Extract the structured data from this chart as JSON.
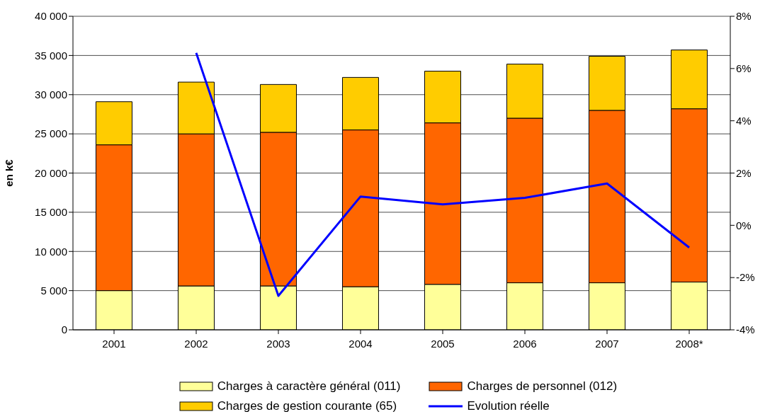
{
  "chart_data": {
    "type": "bar",
    "stacked": true,
    "ylabel": "en k€",
    "categories": [
      "2001",
      "2002",
      "2003",
      "2004",
      "2005",
      "2006",
      "2007",
      "2008*"
    ],
    "series": [
      {
        "name": "Charges à caractère général (011)",
        "color": "#ffff99",
        "values": [
          5000,
          5600,
          5600,
          5500,
          5800,
          6000,
          6000,
          6100
        ]
      },
      {
        "name": "Charges de personnel (012)",
        "color": "#ff6600",
        "values": [
          18600,
          19400,
          19600,
          20000,
          20600,
          21000,
          22000,
          22100
        ]
      },
      {
        "name": "Charges de gestion courante (65)",
        "color": "#ffcc00",
        "values": [
          5500,
          6600,
          6100,
          6700,
          6600,
          6900,
          6900,
          7500
        ]
      },
      {
        "name": "Evolution réelle",
        "type": "line",
        "axis": "y2",
        "color": "#0000ff",
        "values": [
          null,
          6.6,
          -2.7,
          1.1,
          0.8,
          1.05,
          1.6,
          -0.85
        ]
      }
    ],
    "ylim": [
      0,
      40000
    ],
    "yticks": [
      {
        "value": 0,
        "label": "0"
      },
      {
        "value": 5000,
        "label": "5 000"
      },
      {
        "value": 10000,
        "label": "10 000"
      },
      {
        "value": 15000,
        "label": "15 000"
      },
      {
        "value": 20000,
        "label": "20 000"
      },
      {
        "value": 25000,
        "label": "25 000"
      },
      {
        "value": 30000,
        "label": "30 000"
      },
      {
        "value": 35000,
        "label": "35 000"
      },
      {
        "value": 40000,
        "label": "40 000"
      }
    ],
    "y2lim": [
      -4,
      8
    ],
    "y2ticks": [
      {
        "value": -4,
        "label": "-4%"
      },
      {
        "value": -2,
        "label": "-2%"
      },
      {
        "value": 0,
        "label": "0%"
      },
      {
        "value": 2,
        "label": "2%"
      },
      {
        "value": 4,
        "label": "4%"
      },
      {
        "value": 6,
        "label": "6%"
      },
      {
        "value": 8,
        "label": "8%"
      }
    ],
    "grid": "y",
    "legend": "bottom",
    "marker": "none",
    "line_style": "solid"
  }
}
